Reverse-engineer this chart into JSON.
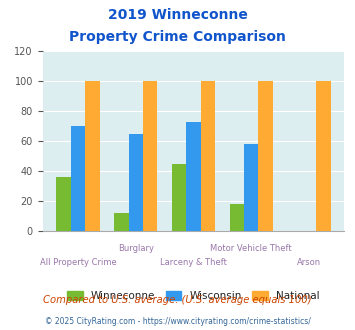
{
  "title_line1": "2019 Winneconne",
  "title_line2": "Property Crime Comparison",
  "winneconne": [
    36,
    12,
    45,
    18,
    0
  ],
  "wisconsin": [
    70,
    65,
    73,
    58,
    0
  ],
  "national": [
    100,
    100,
    100,
    100,
    100
  ],
  "color_winneconne": "#77bb33",
  "color_wisconsin": "#3399ee",
  "color_national": "#ffaa33",
  "ylim": [
    0,
    120
  ],
  "yticks": [
    0,
    20,
    40,
    60,
    80,
    100,
    120
  ],
  "background_color": "#ddeef0",
  "title_color": "#1155cc",
  "xlabel_color": "#9977aa",
  "legend_label_color": "#222222",
  "footer_text": "Compared to U.S. average. (U.S. average equals 100)",
  "footer_color": "#cc4400",
  "credit_text": "© 2025 CityRating.com - https://www.cityrating.com/crime-statistics/",
  "credit_color": "#336699",
  "bar_width": 0.25
}
